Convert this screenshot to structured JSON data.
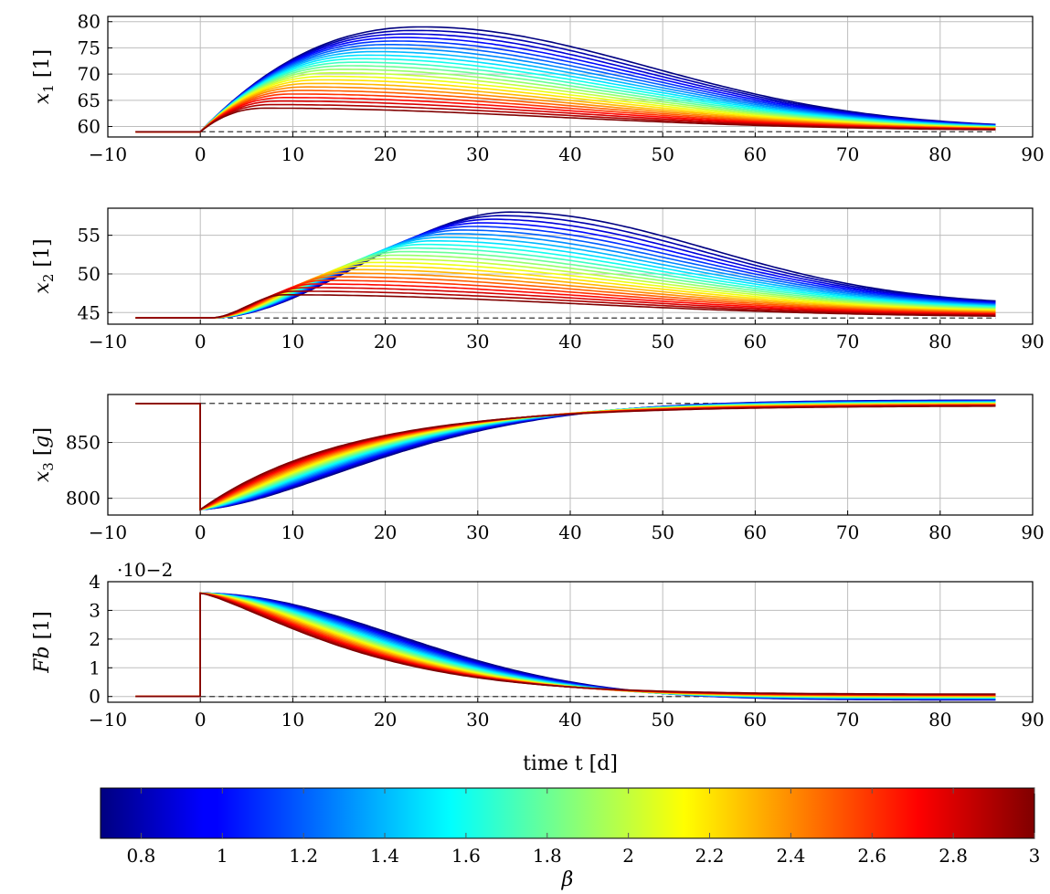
{
  "chart_data": [
    {
      "type": "line",
      "panel": "x1",
      "ylabel": "x1 [1]",
      "xlim": [
        -10,
        90
      ],
      "ylim": [
        58,
        81
      ],
      "xticks": [
        "−10",
        "0",
        "10",
        "20",
        "30",
        "40",
        "50",
        "60",
        "70",
        "80",
        "90"
      ],
      "yticks": [
        "60",
        "65",
        "70",
        "75",
        "80"
      ],
      "grid": true,
      "reference_line": {
        "style": "dashed",
        "value": 59
      },
      "pre_step": {
        "t": [
          -7,
          0
        ],
        "value": 59
      },
      "curves": [
        {
          "beta": 0.7,
          "peak_t": 24,
          "peak": 79.0,
          "end": 59.6
        },
        {
          "beta": 3.0,
          "peak_t": 7,
          "peak": 63.5,
          "end": 59.2
        }
      ],
      "n_curves": 24
    },
    {
      "type": "line",
      "panel": "x2",
      "ylabel": "x2 [1]",
      "xlim": [
        -10,
        90
      ],
      "ylim": [
        43.5,
        58.5
      ],
      "xticks": [
        "−10",
        "0",
        "10",
        "20",
        "30",
        "40",
        "50",
        "60",
        "70",
        "80",
        "90"
      ],
      "yticks": [
        "45",
        "50",
        "55"
      ],
      "grid": true,
      "reference_line": {
        "style": "dashed",
        "value": 44.3
      },
      "pre_step": {
        "t": [
          -7,
          0
        ],
        "value": 44.3
      },
      "curves": [
        {
          "beta": 0.7,
          "peak_t": 33.5,
          "peak": 58.0,
          "end": 45.9
        },
        {
          "beta": 3.0,
          "peak_t": 9,
          "peak": 47.3,
          "end": 44.4
        }
      ],
      "n_curves": 24
    },
    {
      "type": "line",
      "panel": "x3",
      "ylabel": "x3 [g]",
      "xlim": [
        -10,
        90
      ],
      "ylim": [
        785,
        893
      ],
      "xticks": [
        "−10",
        "0",
        "10",
        "20",
        "30",
        "40",
        "50",
        "60",
        "70",
        "80",
        "90"
      ],
      "yticks": [
        "800",
        "850"
      ],
      "grid": true,
      "reference_line": {
        "style": "dashed",
        "value": 885
      },
      "pre_step": {
        "t": [
          -7,
          0
        ],
        "value": 885
      },
      "drop_to": 790,
      "curves": [
        {
          "beta": 0.7,
          "end": 888
        },
        {
          "beta": 3.0,
          "end": 883
        }
      ],
      "n_curves": 24
    },
    {
      "type": "line",
      "panel": "Fb",
      "ylabel": "Fb [1]",
      "xlabel": "time t [d]",
      "axis_multiplier": "·10−2",
      "xlim": [
        -10,
        90
      ],
      "ylim": [
        -0.2,
        4
      ],
      "xticks": [
        "−10",
        "0",
        "10",
        "20",
        "30",
        "40",
        "50",
        "60",
        "70",
        "80",
        "90"
      ],
      "yticks": [
        "0",
        "1",
        "2",
        "3",
        "4"
      ],
      "grid": true,
      "reference_line": {
        "style": "dashed",
        "value": 0
      },
      "pre_step": {
        "t": [
          -7,
          0
        ],
        "value": 0
      },
      "jump_to": 3.6,
      "curves": [
        {
          "beta": 0.7,
          "end": -0.12
        },
        {
          "beta": 3.0,
          "end": 0.08
        }
      ],
      "n_curves": 24
    }
  ],
  "colorbar": {
    "label": "β",
    "range": [
      0.7,
      3.0
    ],
    "colormap": "jet",
    "ticks": [
      "0.8",
      "1",
      "1.2",
      "1.4",
      "1.6",
      "1.8",
      "2",
      "2.2",
      "2.4",
      "2.6",
      "2.8",
      "3"
    ]
  }
}
